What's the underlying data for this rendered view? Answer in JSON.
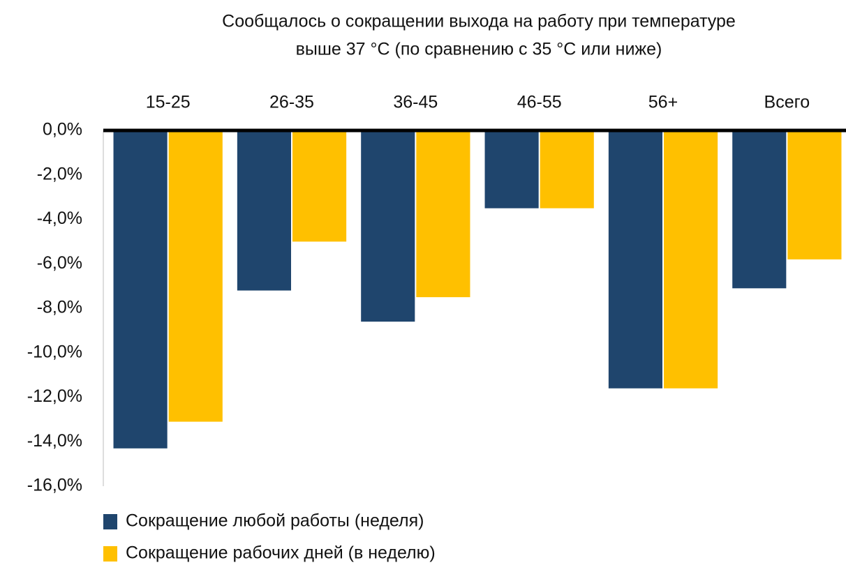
{
  "chart_data": {
    "type": "bar",
    "title": [
      "Сообщалось о сокращении выхода на работу при температуре",
      "выше 37 °С (по сравнению с 35 °С или ниже)"
    ],
    "categories": [
      "15-25",
      "26-35",
      "36-45",
      "46-55",
      "56+",
      "Всего"
    ],
    "series": [
      {
        "name": "Сокращение любой работы (неделя)",
        "color": "#1f456d",
        "values": [
          -14.3,
          -7.2,
          -8.6,
          -3.5,
          -11.6,
          -7.1
        ]
      },
      {
        "name": "Сокращение рабочих дней (в неделю)",
        "color": "#ffc000",
        "values": [
          -13.1,
          -5.0,
          -7.5,
          -3.5,
          -11.6,
          -5.8
        ]
      }
    ],
    "ylim": [
      -16,
      0
    ],
    "yticks": [
      {
        "value": 0,
        "label": "0,0%"
      },
      {
        "value": -2,
        "label": "-2,0%"
      },
      {
        "value": -4,
        "label": "-4,0%"
      },
      {
        "value": -6,
        "label": "-6,0%"
      },
      {
        "value": -8,
        "label": "-8,0%"
      },
      {
        "value": -10,
        "label": "-10,0%"
      },
      {
        "value": -12,
        "label": "-12,0%"
      },
      {
        "value": -14,
        "label": "-14,0%"
      },
      {
        "value": -16,
        "label": "-16,0%"
      }
    ],
    "grid": false,
    "legend": "bottom-left"
  }
}
